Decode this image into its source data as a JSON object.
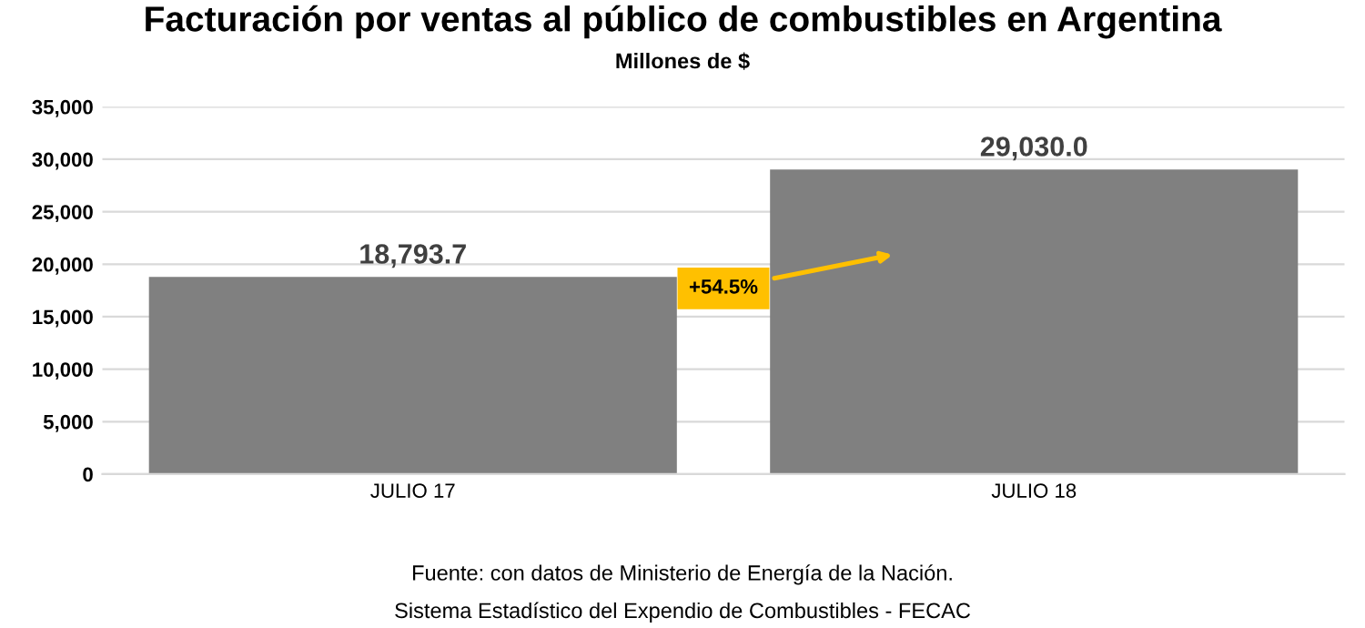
{
  "chart_data": {
    "type": "bar",
    "title": "Facturación por ventas al público de combustibles en Argentina",
    "subtitle": "Millones de $",
    "categories": [
      "JULIO 17",
      "JULIO 18"
    ],
    "values": [
      18793.7,
      29030.0
    ],
    "color": "#808080",
    "value_labels": [
      "18,793.7",
      "29,030.0"
    ],
    "ylim": [
      0,
      35000
    ],
    "yticks": [
      {
        "value": 0,
        "label": "0"
      },
      {
        "value": 5000,
        "label": "5,000"
      },
      {
        "value": 10000,
        "label": "10,000"
      },
      {
        "value": 15000,
        "label": "15,000"
      },
      {
        "value": 20000,
        "label": "20,000"
      },
      {
        "value": 25000,
        "label": "25,000"
      },
      {
        "value": 30000,
        "label": "30,000"
      },
      {
        "value": 35000,
        "label": "35,000"
      }
    ],
    "grid": "y",
    "annotations": [
      "+54.5%",
      "Fuente: con datos de Ministerio de Energía de la Nación.",
      "Sistema Estadístico del Expendio de Combustibles - FECAC"
    ]
  }
}
